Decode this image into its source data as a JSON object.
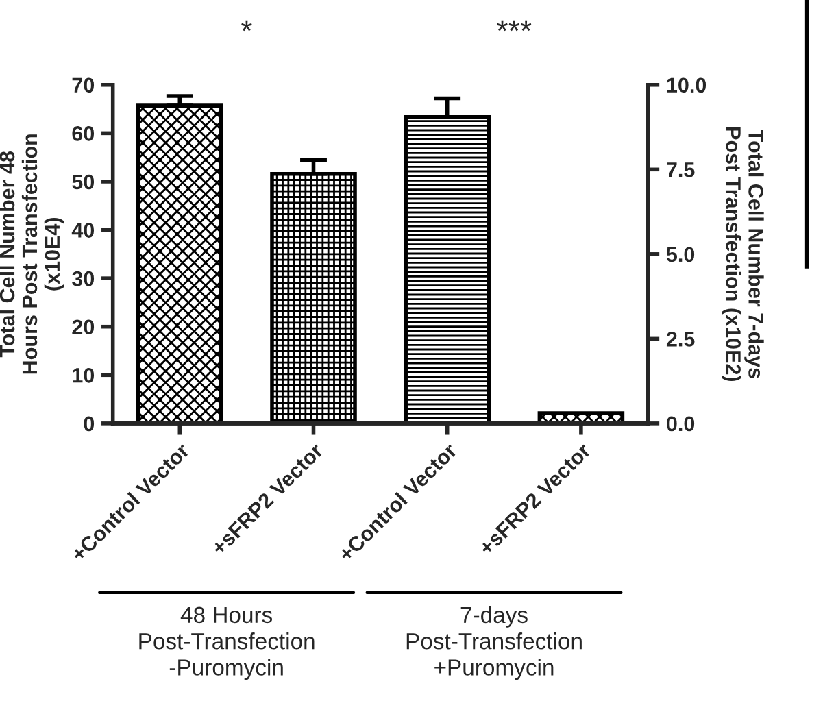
{
  "chart_data": {
    "type": "bar",
    "categories": [
      "+Control Vector",
      "+sFRP2 Vector",
      "+Control Vector",
      "+sFRP2 Vector"
    ],
    "series": [
      {
        "color": "#000000",
        "values": [
          65.7,
          51.6,
          null,
          null
        ],
        "errors": [
          [
            65.7,
            67.7
          ],
          [
            51.6,
            54.4
          ],
          null,
          null
        ]
      },
      {
        "color": "#000000",
        "axis": "y2",
        "values": [
          null,
          null,
          9.05,
          0.3
        ],
        "errors": [
          null,
          null,
          [
            9.05,
            9.6
          ],
          null
        ]
      }
    ],
    "ylabel": "Total Cell Number 48\nHours Post Transfection\n(x10E4)",
    "y2label": "Total Cell Number 7-days\nPost Transfection (x10E2)",
    "ylim": [
      0,
      70
    ],
    "yticks": [
      0,
      10,
      20,
      30,
      40,
      50,
      60,
      70
    ],
    "y2lim": [
      0,
      10
    ],
    "y2ticks": [
      {
        "value": 0,
        "label": "0.0"
      },
      {
        "value": 2.5,
        "label": "2.5"
      },
      {
        "value": 5,
        "label": "5.0"
      },
      {
        "value": 7.5,
        "label": "7.5"
      },
      {
        "value": 10,
        "label": "10.0"
      }
    ],
    "annotations": [
      "*",
      "***",
      "48 Hours\nPost-Transfection\n-Puromycin",
      "7-days\nPost-Transfection\n+Puromycin"
    ],
    "grid": false,
    "legend": false
  }
}
